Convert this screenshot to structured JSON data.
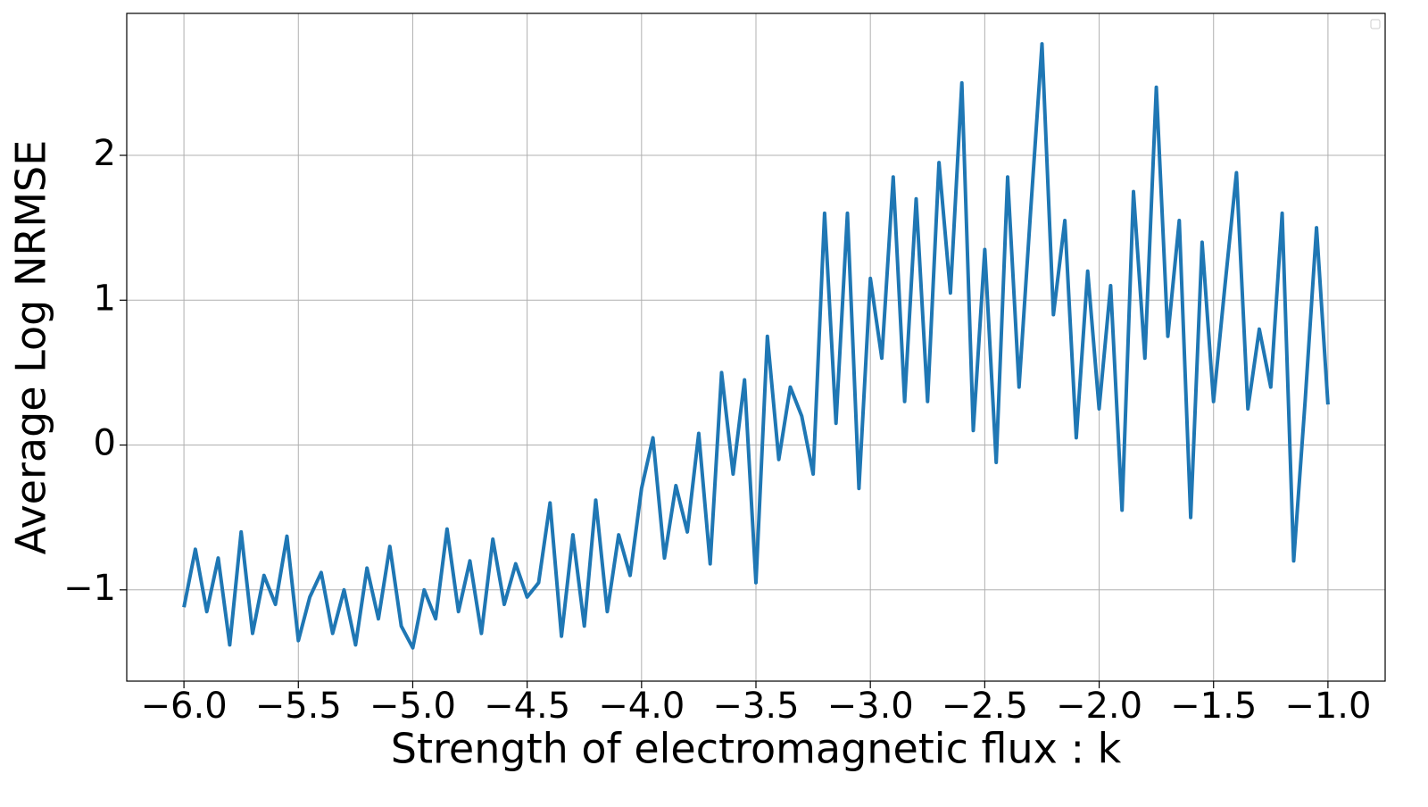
{
  "chart_data": {
    "type": "line",
    "xlabel": "Strength of electromagnetic flux : k",
    "ylabel": "Average Log NRMSE",
    "x": [
      -6.0,
      -5.95,
      -5.9,
      -5.85,
      -5.8,
      -5.75,
      -5.7,
      -5.65,
      -5.6,
      -5.55,
      -5.5,
      -5.45,
      -5.4,
      -5.35,
      -5.3,
      -5.25,
      -5.2,
      -5.15,
      -5.1,
      -5.05,
      -5.0,
      -4.95,
      -4.9,
      -4.85,
      -4.8,
      -4.75,
      -4.7,
      -4.65,
      -4.6,
      -4.55,
      -4.5,
      -4.45,
      -4.4,
      -4.35,
      -4.3,
      -4.25,
      -4.2,
      -4.15,
      -4.1,
      -4.05,
      -4.0,
      -3.95,
      -3.9,
      -3.85,
      -3.8,
      -3.75,
      -3.7,
      -3.65,
      -3.6,
      -3.55,
      -3.5,
      -3.45,
      -3.4,
      -3.35,
      -3.3,
      -3.25,
      -3.2,
      -3.15,
      -3.1,
      -3.05,
      -3.0,
      -2.95,
      -2.9,
      -2.85,
      -2.8,
      -2.75,
      -2.7,
      -2.65,
      -2.6,
      -2.55,
      -2.5,
      -2.45,
      -2.4,
      -2.35,
      -2.3,
      -2.25,
      -2.2,
      -2.15,
      -2.1,
      -2.05,
      -2.0,
      -1.95,
      -1.9,
      -1.85,
      -1.8,
      -1.75,
      -1.7,
      -1.65,
      -1.6,
      -1.55,
      -1.5,
      -1.45,
      -1.4,
      -1.35,
      -1.3,
      -1.25,
      -1.2,
      -1.15,
      -1.1,
      -1.05,
      -1.0
    ],
    "series": [
      {
        "color": "#1f77b4",
        "values": [
          -1.12,
          -0.72,
          -1.15,
          -0.78,
          -1.38,
          -0.6,
          -1.3,
          -0.9,
          -1.1,
          -0.63,
          -1.35,
          -1.05,
          -0.88,
          -1.3,
          -1.0,
          -1.38,
          -0.85,
          -1.2,
          -0.7,
          -1.25,
          -1.4,
          -1.0,
          -1.2,
          -0.58,
          -1.15,
          -0.8,
          -1.3,
          -0.65,
          -1.1,
          -0.82,
          -1.05,
          -0.95,
          -0.4,
          -1.32,
          -0.62,
          -1.25,
          -0.38,
          -1.15,
          -0.62,
          -0.9,
          -0.3,
          0.05,
          -0.78,
          -0.28,
          -0.6,
          0.08,
          -0.82,
          0.5,
          -0.2,
          0.45,
          -0.95,
          0.75,
          -0.1,
          0.4,
          0.2,
          -0.2,
          1.6,
          0.15,
          1.6,
          -0.3,
          1.15,
          0.6,
          1.85,
          0.3,
          1.7,
          0.3,
          1.95,
          1.05,
          2.5,
          0.1,
          1.35,
          -0.12,
          1.85,
          0.4,
          1.6,
          2.77,
          0.9,
          1.55,
          0.05,
          1.2,
          0.25,
          1.1,
          -0.45,
          1.75,
          0.6,
          2.47,
          0.75,
          1.55,
          -0.5,
          1.4,
          0.3,
          1.1,
          1.88,
          0.25,
          0.8,
          0.4,
          1.6,
          -0.8,
          0.3,
          1.5,
          0.28
        ]
      }
    ],
    "xlim": [
      -6.25,
      -0.75
    ],
    "ylim": [
      -1.63,
      2.98
    ],
    "xticks": [
      {
        "value": -6,
        "label": "−6.0"
      },
      {
        "value": -5.5,
        "label": "−5.5"
      },
      {
        "value": -5,
        "label": "−5.0"
      },
      {
        "value": -4.5,
        "label": "−4.5"
      },
      {
        "value": -4,
        "label": "−4.0"
      },
      {
        "value": -3.5,
        "label": "−3.5"
      },
      {
        "value": -3,
        "label": "−3.0"
      },
      {
        "value": -2.5,
        "label": "−2.5"
      },
      {
        "value": -2,
        "label": "−2.0"
      },
      {
        "value": -1.5,
        "label": "−1.5"
      },
      {
        "value": -1,
        "label": "−1.0"
      }
    ],
    "yticks": [
      {
        "value": -1,
        "label": "−1"
      },
      0,
      1,
      2
    ],
    "grid": true
  }
}
